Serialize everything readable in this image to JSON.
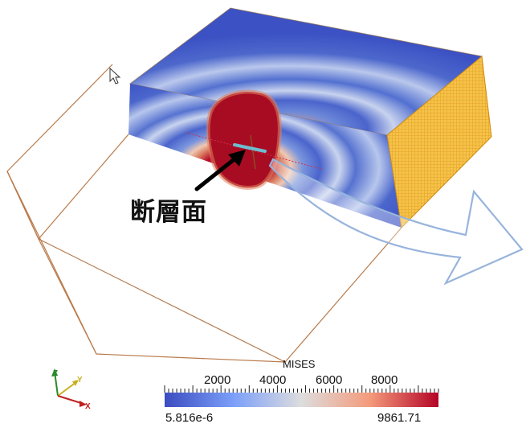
{
  "annotation": {
    "label": "断層面"
  },
  "colorbar": {
    "title": "MISES",
    "min_label": "5.816e-6",
    "max_label": "9861.71",
    "ticks": [
      "2000",
      "4000",
      "6000",
      "8000"
    ],
    "colors": {
      "low": "#3b4cc0",
      "mid": "#dddddd",
      "high": "#b40426"
    }
  },
  "orientation_axes": {
    "z": "Z",
    "y": "Y",
    "x": "X"
  },
  "colors": {
    "outline": "#b87a4a",
    "mesh": "#f0b030",
    "arrow_outline": "#98b4dc",
    "fault_line": "#6fbcd0"
  },
  "icons": [
    "cursor-icon",
    "pointer-arrow-icon",
    "orientation-axes-icon",
    "big-arrow-icon"
  ]
}
